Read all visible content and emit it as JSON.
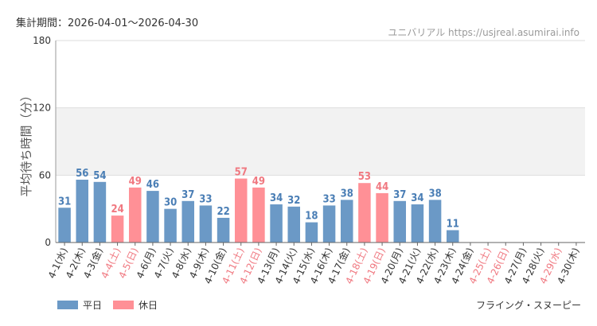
{
  "header": {
    "period_label": "集計期間：2026-04-01～2026-04-30",
    "source_label": "ユニバリアル https://usjreal.asumirai.info"
  },
  "footer": {
    "attraction_name": "フライング・スヌーピー"
  },
  "legend": {
    "weekday_label": "平日",
    "holiday_label": "休日"
  },
  "colors": {
    "weekday": "#6b99c6",
    "holiday": "#ff9096",
    "weekday_text": "#4a7eb5",
    "holiday_text": "#f07880",
    "band": "#f2f2f2",
    "grid": "#dddddd",
    "axis": "#999999"
  },
  "chart_data": {
    "type": "bar",
    "ylabel": "平均待ち時間（分）",
    "ylim": [
      0,
      180
    ],
    "yticks": [
      0,
      60,
      120,
      180
    ],
    "categories": [
      "4-1(水)",
      "4-2(木)",
      "4-3(金)",
      "4-4(土)",
      "4-5(日)",
      "4-6(月)",
      "4-7(火)",
      "4-8(水)",
      "4-9(木)",
      "4-10(金)",
      "4-11(土)",
      "4-12(日)",
      "4-13(月)",
      "4-14(火)",
      "4-15(水)",
      "4-16(木)",
      "4-17(金)",
      "4-18(土)",
      "4-19(日)",
      "4-20(月)",
      "4-21(火)",
      "4-22(水)",
      "4-23(木)",
      "4-24(金)",
      "4-25(土)",
      "4-26(日)",
      "4-27(月)",
      "4-28(火)",
      "4-29(水)",
      "4-30(木)"
    ],
    "values": [
      31,
      56,
      54,
      24,
      49,
      46,
      30,
      37,
      33,
      22,
      57,
      49,
      34,
      32,
      18,
      33,
      38,
      53,
      44,
      37,
      34,
      38,
      11,
      null,
      null,
      null,
      null,
      null,
      null,
      null
    ],
    "day_types": [
      "weekday",
      "weekday",
      "weekday",
      "holiday",
      "holiday",
      "weekday",
      "weekday",
      "weekday",
      "weekday",
      "weekday",
      "holiday",
      "holiday",
      "weekday",
      "weekday",
      "weekday",
      "weekday",
      "weekday",
      "holiday",
      "holiday",
      "weekday",
      "weekday",
      "weekday",
      "weekday",
      "weekday",
      "holiday",
      "holiday",
      "weekday",
      "weekday",
      "holiday",
      "weekday"
    ]
  }
}
